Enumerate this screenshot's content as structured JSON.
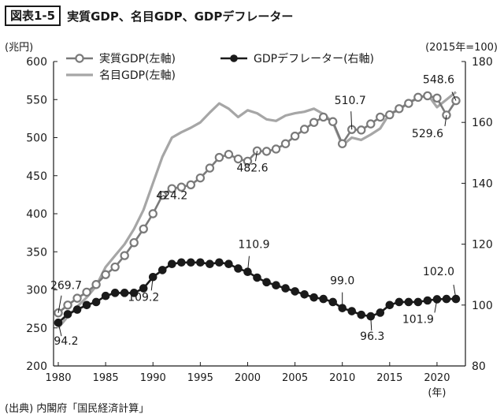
{
  "header": {
    "figure_label": "図表1-5",
    "title": "実質GDP、名目GDP、GDPデフレーター"
  },
  "source": "(出典) 内閣府「国民経済計算」",
  "colors": {
    "real": "#7a7a7a",
    "nominal": "#a6a6a6",
    "deflator": "#1a1a1a",
    "axis": "#1a1a1a"
  },
  "chart_data": {
    "type": "line",
    "title": "実質GDP、名目GDP、GDPデフレーター",
    "left_unit": "(兆円)",
    "right_unit": "(2015年=100)",
    "x_unit": "(年)",
    "x_ticks": [
      1980,
      1985,
      1990,
      1995,
      2000,
      2005,
      2010,
      2015,
      2020
    ],
    "y_left_ticks": [
      200,
      250,
      300,
      350,
      400,
      450,
      500,
      550,
      600
    ],
    "y_right_ticks": [
      80,
      100,
      120,
      140,
      160,
      180
    ],
    "ylim_left": [
      200,
      600
    ],
    "ylim_right": [
      80,
      180
    ],
    "xlim": [
      1979.5,
      2023
    ],
    "x": [
      1980,
      1981,
      1982,
      1983,
      1984,
      1985,
      1986,
      1987,
      1988,
      1989,
      1990,
      1991,
      1992,
      1993,
      1994,
      1995,
      1996,
      1997,
      1998,
      1999,
      2000,
      2001,
      2002,
      2003,
      2004,
      2005,
      2006,
      2007,
      2008,
      2009,
      2010,
      2011,
      2012,
      2013,
      2014,
      2015,
      2016,
      2017,
      2018,
      2019,
      2020,
      2021,
      2022
    ],
    "series": [
      {
        "name": "実質GDP(左軸)",
        "axis": "left",
        "style": "hollow",
        "values": [
          269.7,
          280,
          289,
          297,
          307,
          320,
          330,
          345,
          362,
          380,
          400,
          424.2,
          433,
          435,
          438,
          447,
          460,
          474,
          478,
          472,
          469,
          482.6,
          482,
          485,
          492,
          502,
          511,
          520,
          527,
          521,
          492,
          510.7,
          510,
          518,
          527,
          530,
          538,
          545,
          553,
          555,
          552,
          529.6,
          548.6
        ]
      },
      {
        "name": "名目GDP(左軸)",
        "axis": "left",
        "style": "line",
        "values": [
          250,
          265,
          278,
          290,
          305,
          330,
          345,
          360,
          380,
          405,
          440,
          475,
          500,
          507,
          513,
          520,
          533,
          545,
          538,
          527,
          536,
          532,
          524,
          522,
          529,
          532,
          534,
          538,
          531,
          520,
          490,
          500,
          497,
          504,
          512,
          532,
          536,
          547,
          551,
          557,
          540,
          550,
          560
        ]
      },
      {
        "name": "GDPデフレーター(右軸)",
        "axis": "right",
        "style": "solid",
        "values": [
          94.2,
          97,
          98.5,
          100,
          101,
          103,
          104,
          104,
          104,
          105.5,
          109.2,
          111.5,
          113.5,
          114,
          114,
          114,
          113.5,
          114,
          113.5,
          112,
          110.9,
          109,
          107.5,
          106.5,
          105.5,
          104.5,
          103.5,
          102.5,
          102,
          101,
          99.0,
          98,
          96.8,
          96.3,
          97.5,
          100,
          101,
          101,
          101,
          101.5,
          101.9,
          102,
          102.0
        ]
      }
    ],
    "annotations": [
      {
        "text": "269.7",
        "series": "real",
        "index": 0
      },
      {
        "text": "424.2",
        "series": "real",
        "index": 11
      },
      {
        "text": "482.6",
        "series": "real",
        "index": 21
      },
      {
        "text": "510.7",
        "series": "real",
        "index": 31
      },
      {
        "text": "529.6",
        "series": "real",
        "index": 41
      },
      {
        "text": "548.6",
        "series": "real",
        "index": 42
      },
      {
        "text": "94.2",
        "series": "deflator",
        "index": 0
      },
      {
        "text": "109.2",
        "series": "deflator",
        "index": 10
      },
      {
        "text": "110.9",
        "series": "deflator",
        "index": 20
      },
      {
        "text": "99.0",
        "series": "deflator",
        "index": 30
      },
      {
        "text": "96.3",
        "series": "deflator",
        "index": 33
      },
      {
        "text": "101.9",
        "series": "deflator",
        "index": 40
      },
      {
        "text": "102.0",
        "series": "deflator",
        "index": 42
      }
    ],
    "legend": [
      "実質GDP(左軸)",
      "名目GDP(左軸)",
      "GDPデフレーター(右軸)"
    ],
    "legend_position": "top-left",
    "grid": false
  }
}
